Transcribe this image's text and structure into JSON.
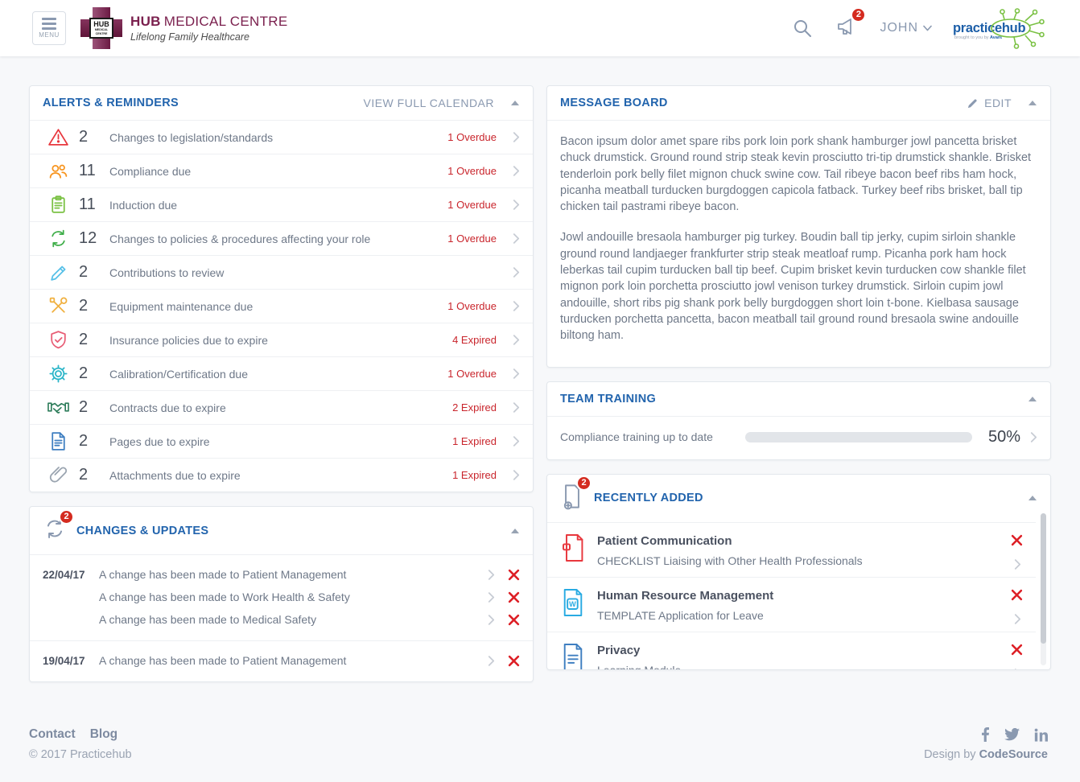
{
  "header": {
    "menu_label": "MENU",
    "brand": {
      "logo_hub": "HUB",
      "logo_sub": "MEDICAL CENTRE",
      "name_bold": "HUB",
      "name_rest": "MEDICAL CENTRE",
      "tagline": "Lifelong Family Healthcare"
    },
    "notification_count": "2",
    "user_name": "JOHN",
    "app_logo": {
      "part1": "practic",
      "part2": "ehub",
      "tagline": "brought to you by Avant"
    }
  },
  "alerts": {
    "title": "ALERTS & REMINDERS",
    "action": "VIEW FULL CALENDAR",
    "items": [
      {
        "icon": "warning-triangle",
        "color": "#e8373d",
        "count": "2",
        "label": "Changes to legislation/standards",
        "badge": "1 Overdue"
      },
      {
        "icon": "users",
        "color": "#f7941e",
        "count": "11",
        "label": "Compliance due",
        "badge": "1 Overdue"
      },
      {
        "icon": "clipboard",
        "color": "#7ac143",
        "count": "11",
        "label": "Induction due",
        "badge": "1 Overdue"
      },
      {
        "icon": "sync-arrows",
        "color": "#3fae49",
        "count": "12",
        "label": "Changes to policies & procedures affecting your role",
        "badge": "1 Overdue"
      },
      {
        "icon": "pencil",
        "color": "#56c0e8",
        "count": "2",
        "label": "Contributions to review",
        "badge": ""
      },
      {
        "icon": "tools",
        "color": "#f0b03f",
        "count": "2",
        "label": "Equipment maintenance due",
        "badge": "1 Overdue"
      },
      {
        "icon": "shield-check",
        "color": "#e85d75",
        "count": "2",
        "label": "Insurance policies due to expire",
        "badge": "4 Expired"
      },
      {
        "icon": "gear",
        "color": "#2ab5c8",
        "count": "2",
        "label": "Calibration/Certification due",
        "badge": "1 Overdue"
      },
      {
        "icon": "handshake",
        "color": "#2e7d5b",
        "count": "2",
        "label": "Contracts due to expire",
        "badge": "2 Expired"
      },
      {
        "icon": "document",
        "color": "#3f7fc1",
        "count": "2",
        "label": "Pages due to expire",
        "badge": "1 Expired"
      },
      {
        "icon": "paperclip",
        "color": "#9aa4b0",
        "count": "2",
        "label": "Attachments due to expire",
        "badge": "1 Expired"
      }
    ]
  },
  "changes": {
    "title": "CHANGES & UPDATES",
    "badge_count": "2",
    "groups": [
      {
        "date": "22/04/17",
        "entries": [
          "A change has been made to Patient Management",
          "A change has been made to Work Health & Safety",
          "A change has been made to Medical Safety"
        ]
      },
      {
        "date": "19/04/17",
        "entries": [
          "A change has been made to Patient Management"
        ]
      }
    ]
  },
  "message_board": {
    "title": "MESSAGE BOARD",
    "edit_label": "EDIT",
    "paragraphs": [
      "Bacon ipsum dolor amet spare ribs pork loin pork shank hamburger jowl pancetta brisket chuck drumstick. Ground round strip steak kevin prosciutto tri-tip drumstick shankle. Brisket tenderloin pork belly filet mignon chuck swine cow. Tail ribeye bacon beef ribs ham hock, picanha meatball turducken burgdoggen capicola fatback. Turkey beef ribs brisket, ball tip chicken tail pastrami ribeye bacon.",
      "Jowl andouille bresaola hamburger pig turkey. Boudin ball tip jerky, cupim sirloin shankle ground round landjaeger frankfurter strip steak meatloaf rump. Picanha pork ham hock leberkas tail cupim turducken ball tip beef. Cupim brisket kevin turducken cow shankle filet mignon pork loin porchetta prosciutto jowl venison turkey drumstick. Sirloin cupim jowl andouille, short ribs pig shank pork belly burgdoggen short loin t-bone. Kielbasa sausage turducken porchetta pancetta, bacon meatball tail ground round bresaola swine andouille biltong ham."
    ]
  },
  "team_training": {
    "title": "TEAM TRAINING",
    "row_label": "Compliance training up to date",
    "progress_percent": 50,
    "progress_label": "50%"
  },
  "recently_added": {
    "title": "RECENTLY ADDED",
    "badge_count": "2",
    "items": [
      {
        "icon": "file-ribbon",
        "color": "#e8373d",
        "category": "Patient Communication",
        "doc": "CHECKLIST Liaising with Other Health Professionals"
      },
      {
        "icon": "file-word",
        "color": "#29abe2",
        "category": "Human Resource Management",
        "doc": "TEMPLATE Application for Leave"
      },
      {
        "icon": "file-lines",
        "color": "#3f7fc1",
        "category": "Privacy",
        "doc": "Learning Module"
      }
    ]
  },
  "footer": {
    "links": [
      "Contact",
      "Blog"
    ],
    "copyright": "© 2017 Practicehub",
    "design_by": "Design by",
    "design_company": "CodeSource"
  },
  "colors": {
    "accent_blue": "#2264ad",
    "overdue_red": "#c9252c",
    "badge_red": "#d42b1f",
    "delete_red": "#dd1f26",
    "progress_orange": "#f6921e",
    "icon_gray": "#8a99b0",
    "brand_maroon": "#7a1f4d",
    "logo_green": "#7ac143"
  }
}
